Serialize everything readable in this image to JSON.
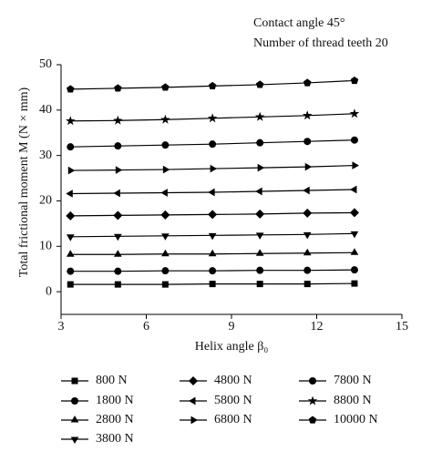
{
  "chart_data": {
    "type": "line",
    "annotations": [
      "Contact angle 45°",
      "Number of thread teeth 20"
    ],
    "x_label": "Helix angle β₀",
    "y_label": "Total frictional moment M (N × mm)",
    "x": [
      3.33,
      5,
      6.67,
      8.33,
      10,
      11.67,
      13.33
    ],
    "xlim": [
      3,
      15
    ],
    "xticks": [
      3,
      6,
      9,
      12,
      15
    ],
    "ylim": [
      -5,
      50
    ],
    "yticks": [
      0,
      10,
      20,
      30,
      40,
      50
    ],
    "series": [
      {
        "name": "800 N",
        "color": "#000000",
        "marker": "square",
        "values": [
          1.6,
          1.6,
          1.6,
          1.7,
          1.7,
          1.7,
          1.8
        ]
      },
      {
        "name": "1800 N",
        "color": "#000000",
        "marker": "circle",
        "values": [
          4.5,
          4.5,
          4.6,
          4.6,
          4.7,
          4.7,
          4.8
        ]
      },
      {
        "name": "2800 N",
        "color": "#000000",
        "marker": "triangle-up",
        "values": [
          8.2,
          8.2,
          8.3,
          8.3,
          8.4,
          8.5,
          8.6
        ]
      },
      {
        "name": "3800 N",
        "color": "#000000",
        "marker": "triangle-down",
        "values": [
          12.1,
          12.2,
          12.3,
          12.4,
          12.5,
          12.6,
          12.8
        ]
      },
      {
        "name": "4800 N",
        "color": "#000000",
        "marker": "diamond",
        "values": [
          16.7,
          16.8,
          16.9,
          17.0,
          17.1,
          17.3,
          17.4
        ]
      },
      {
        "name": "5800 N",
        "color": "#000000",
        "marker": "triangle-left",
        "values": [
          21.6,
          21.7,
          21.8,
          21.9,
          22.1,
          22.3,
          22.5
        ]
      },
      {
        "name": "6800 N",
        "color": "#000000",
        "marker": "triangle-right",
        "values": [
          26.7,
          26.8,
          26.9,
          27.1,
          27.3,
          27.5,
          27.8
        ]
      },
      {
        "name": "7800 N",
        "color": "#000000",
        "marker": "circle",
        "values": [
          31.9,
          32.1,
          32.3,
          32.5,
          32.8,
          33.1,
          33.4
        ]
      },
      {
        "name": "8800 N",
        "color": "#000000",
        "marker": "star",
        "values": [
          37.6,
          37.7,
          37.9,
          38.2,
          38.5,
          38.8,
          39.2
        ]
      },
      {
        "name": "10000 N",
        "color": "#000000",
        "marker": "pentagon",
        "values": [
          44.6,
          44.8,
          45.0,
          45.3,
          45.6,
          46.0,
          46.5
        ]
      }
    ]
  }
}
